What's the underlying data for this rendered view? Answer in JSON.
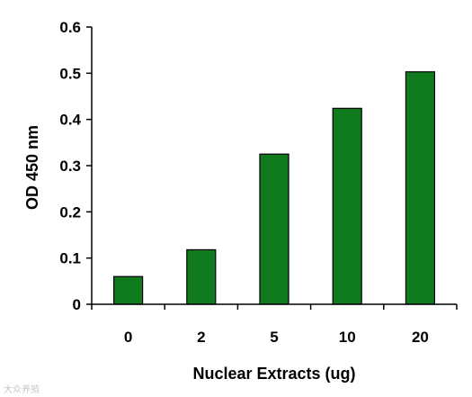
{
  "chart_data": {
    "type": "bar",
    "categories": [
      "0",
      "2",
      "5",
      "10",
      "20"
    ],
    "values": [
      0.06,
      0.118,
      0.325,
      0.424,
      0.503
    ],
    "xlabel": "Nuclear Extracts (ug)",
    "ylabel": "OD 450 nm",
    "ylim": [
      0,
      0.6
    ],
    "yticks": [
      "0",
      "0.1",
      "0.2",
      "0.3",
      "0.4",
      "0.5",
      "0.6"
    ],
    "grid": false,
    "legend": "none",
    "bar_color": "#0f7a1e"
  },
  "watermark": "大众养殖"
}
